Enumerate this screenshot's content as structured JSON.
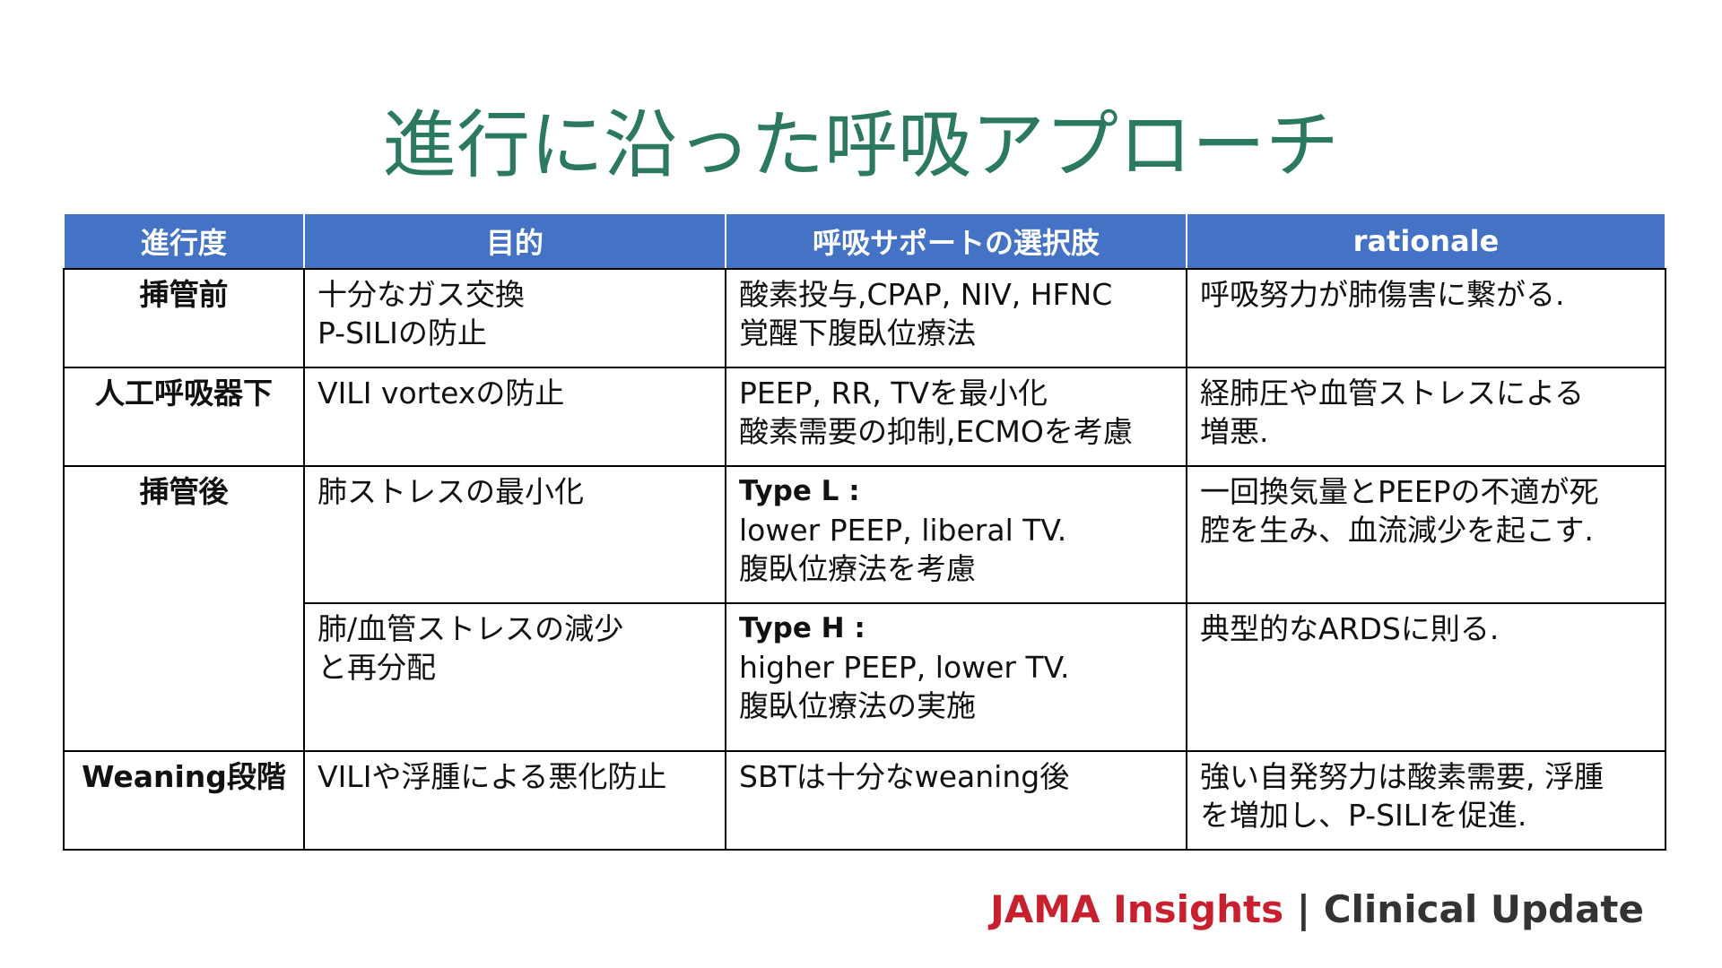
{
  "title": "進行に沿った呼吸アプローチ",
  "table": {
    "headers": [
      "進行度",
      "目的",
      "呼吸サポートの選択肢",
      "rationale"
    ],
    "groups": [
      {
        "stage": "挿管前",
        "entries": [
          {
            "purpose": [
              "十分なガス交換",
              "P-SILIの防止"
            ],
            "options": {
              "lines": [
                "酸素投与,CPAP, NIV, HFNC",
                "覚醒下腹臥位療法"
              ]
            },
            "rationale": [
              "呼吸努力が肺傷害に繋がる."
            ]
          }
        ]
      },
      {
        "stage": "人工呼吸器下",
        "entries": [
          {
            "purpose": [
              "VILI vortexの防止"
            ],
            "options": {
              "lines": [
                "PEEP, RR, TVを最小化",
                "酸素需要の抑制,ECMOを考慮"
              ]
            },
            "rationale": [
              "経肺圧や血管ストレスによる",
              "増悪."
            ]
          }
        ]
      },
      {
        "stage": "挿管後",
        "entries": [
          {
            "purpose": [
              "肺ストレスの最小化"
            ],
            "options": {
              "label": "Type L :",
              "lines": [
                "lower PEEP, liberal TV.",
                "腹臥位療法を考慮"
              ]
            },
            "rationale": [
              "一回換気量とPEEPの不適が死",
              "腔を生み、血流減少を起こす."
            ]
          },
          {
            "purpose": [
              "肺/血管ストレスの減少",
              "と再分配"
            ],
            "options": {
              "label": "Type H :",
              "lines": [
                "higher PEEP, lower TV.",
                "腹臥位療法の実施"
              ]
            },
            "rationale": [
              "典型的なARDSに則る."
            ]
          }
        ]
      },
      {
        "stage": "Weaning段階",
        "entries": [
          {
            "purpose": [
              "VILIや浮腫による悪化防止"
            ],
            "options": {
              "lines": [
                "SBTは十分なweaning後"
              ]
            },
            "rationale": [
              "強い自発努力は酸素需要, 浮腫",
              "を増加し、P-SILIを促進."
            ]
          }
        ]
      }
    ]
  },
  "footer": {
    "brand": "JAMA Insights",
    "separator": "|",
    "product": "Clinical Update"
  }
}
